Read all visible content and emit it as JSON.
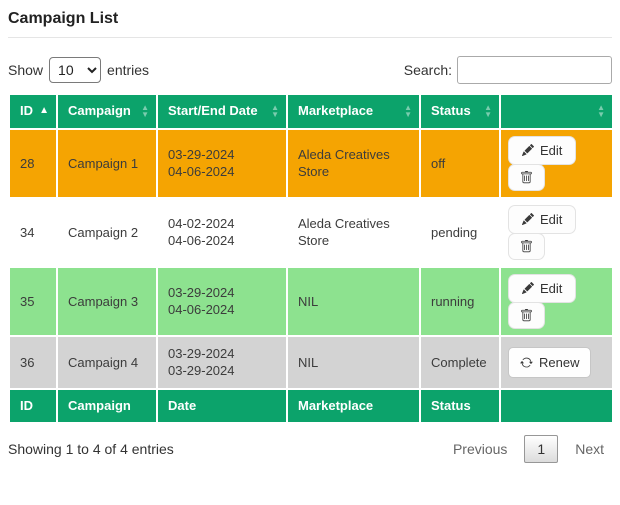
{
  "page": {
    "title": "Campaign List"
  },
  "controls": {
    "show_label": "Show",
    "page_length": "10",
    "entries_label": "entries",
    "search_label": "Search:",
    "search_value": ""
  },
  "table": {
    "header_color": "#0ca36b",
    "headers": [
      {
        "key": "id",
        "label": "ID",
        "sort": "asc"
      },
      {
        "key": "campaign",
        "label": "Campaign",
        "sort": "both"
      },
      {
        "key": "date",
        "label": "Start/End Date",
        "sort": "both"
      },
      {
        "key": "marketplace",
        "label": "Marketplace",
        "sort": "both"
      },
      {
        "key": "status",
        "label": "Status",
        "sort": "both"
      },
      {
        "key": "actions",
        "label": "",
        "sort": "both"
      }
    ],
    "footer_headers": [
      "ID",
      "Campaign",
      "Date",
      "Marketplace",
      "Status",
      ""
    ],
    "action_labels": {
      "edit": "Edit",
      "delete": "",
      "renew": "Renew"
    },
    "action_icons": {
      "edit": "pencil-icon",
      "delete": "trash-icon",
      "renew": "refresh-icon"
    },
    "rows": [
      {
        "id": "28",
        "campaign": "Campaign 1",
        "start_date": "03-29-2024",
        "end_date": "04-06-2024",
        "marketplace": "Aleda Creatives Store",
        "status": "off",
        "color": "#f5a402",
        "actions": [
          "edit",
          "delete"
        ]
      },
      {
        "id": "34",
        "campaign": "Campaign 2",
        "start_date": "04-02-2024",
        "end_date": "04-06-2024",
        "marketplace": "Aleda Creatives Store",
        "status": "pending",
        "color": "#ffffff",
        "actions": [
          "edit",
          "delete"
        ]
      },
      {
        "id": "35",
        "campaign": "Campaign 3",
        "start_date": "03-29-2024",
        "end_date": "04-06-2024",
        "marketplace": "NIL",
        "status": "running",
        "color": "#8de28f",
        "actions": [
          "edit",
          "delete"
        ]
      },
      {
        "id": "36",
        "campaign": "Campaign 4",
        "start_date": "03-29-2024",
        "end_date": "03-29-2024",
        "marketplace": "NIL",
        "status": "Complete",
        "color": "#d3d3d3",
        "actions": [
          "renew"
        ]
      }
    ]
  },
  "summary": {
    "info": "Showing 1 to 4 of 4 entries"
  },
  "pagination": {
    "previous": "Previous",
    "current_page": "1",
    "next": "Next"
  }
}
